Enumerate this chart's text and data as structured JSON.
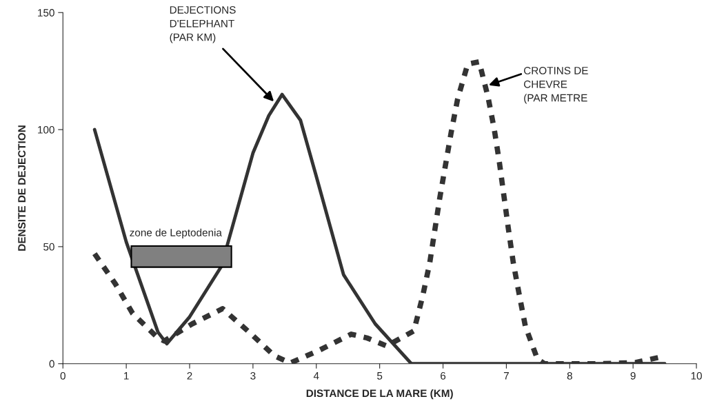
{
  "chart_data": {
    "type": "line",
    "xlabel": "DISTANCE DE LA MARE (KM)",
    "ylabel": "DENSITE DE DEJECTION",
    "xlim": [
      0,
      10
    ],
    "xticks": [
      0,
      1,
      2,
      3,
      4,
      5,
      6,
      7,
      8,
      9,
      10
    ],
    "ylim": [
      0,
      150
    ],
    "yticks": [
      0,
      50,
      100,
      150
    ],
    "grid": false,
    "marker": "none",
    "series": [
      {
        "color": "#333333",
        "line_style": "solid",
        "x": [
          0.5,
          1,
          1.5,
          1.64,
          2,
          2.5,
          3,
          3.25,
          3.46,
          3.75,
          4,
          4.43,
          4.93,
          5.5,
          6,
          7,
          8,
          9,
          9.5
        ],
        "values": [
          100,
          52,
          13.5,
          8.5,
          20,
          41.5,
          90,
          106,
          115,
          104,
          80,
          38,
          17,
          0,
          0,
          0,
          0,
          0,
          0
        ]
      },
      {
        "color": "#333333",
        "line_style": "dashed",
        "x": [
          0.5,
          0.83,
          1.1,
          1.5,
          1.6,
          2.04,
          2.52,
          2.96,
          3.34,
          3.59,
          4.05,
          4.55,
          4.8,
          5.11,
          5.54,
          5.68,
          5.79,
          5.87,
          5.95,
          6.04,
          6.13,
          6.23,
          6.39,
          6.57,
          6.71,
          6.81,
          6.89,
          6.96,
          7.03,
          7.11,
          7.2,
          7.3,
          7.49,
          7.6,
          8,
          8.5,
          9.04,
          9.46
        ],
        "values": [
          47,
          34,
          21.5,
          11,
          9.7,
          17,
          23.5,
          13,
          3.3,
          0.3,
          5.8,
          12.6,
          11,
          7.6,
          14,
          29,
          43,
          57,
          71,
          85,
          99,
          113,
          128,
          129,
          114,
          100,
          86,
          72,
          58,
          43,
          30,
          16,
          2,
          0,
          0,
          0,
          0.5,
          3
        ]
      }
    ],
    "annotations": [
      {
        "text": "DEJECTIONS\nD'ELEPHANT\n(PAR KM)",
        "x": 3.33,
        "y": 112
      },
      {
        "text": "CROTINS DE\nCHEVRE\n(PAR METRE",
        "x": 6.72,
        "y": 119
      }
    ],
    "bands": [
      {
        "axis": "x",
        "from": 1.08,
        "to": 2.66,
        "label": "zone de Leptodenia",
        "color": "#808080"
      }
    ]
  }
}
